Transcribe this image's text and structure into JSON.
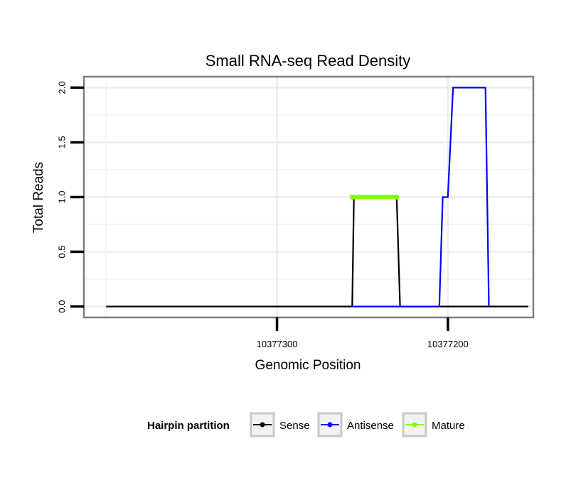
{
  "chart_data": {
    "type": "line",
    "title": "Small RNA-seq Read Density",
    "xlabel": "Genomic Position",
    "ylabel": "Total Reads",
    "x_reversed": true,
    "xlim": [
      10377413,
      10377150
    ],
    "ylim": [
      -0.1,
      2.1
    ],
    "x_ticks": [
      10377300,
      10377200
    ],
    "x_tick_labels": [
      "10377300",
      "10377200"
    ],
    "y_ticks": [
      0,
      0.5,
      1,
      1.5,
      2
    ],
    "y_tick_labels": [
      "0.0",
      "0.5",
      "1.0",
      "1.5",
      "2.0"
    ],
    "grid": true,
    "legend": {
      "title": "Hairpin partition",
      "placement": "bottom",
      "entries": [
        "Sense",
        "Antisense",
        "Mature"
      ]
    },
    "series": [
      {
        "name": "Sense",
        "color": "#000000",
        "x": [
          10377400,
          10377256,
          10377255,
          10377230,
          10377228,
          10377153
        ],
        "y": [
          0,
          0,
          1,
          1,
          0,
          0
        ]
      },
      {
        "name": "Antisense",
        "color": "#0000ff",
        "x": [
          10377256,
          10377228,
          10377205,
          10377203,
          10377200,
          10377197,
          10377178,
          10377176
        ],
        "y": [
          0,
          0,
          0,
          1,
          1,
          2,
          2,
          0
        ]
      },
      {
        "name": "Mature",
        "color": "#7fff00",
        "x": [
          10377256,
          10377230
        ],
        "y": [
          1,
          1
        ]
      }
    ]
  }
}
